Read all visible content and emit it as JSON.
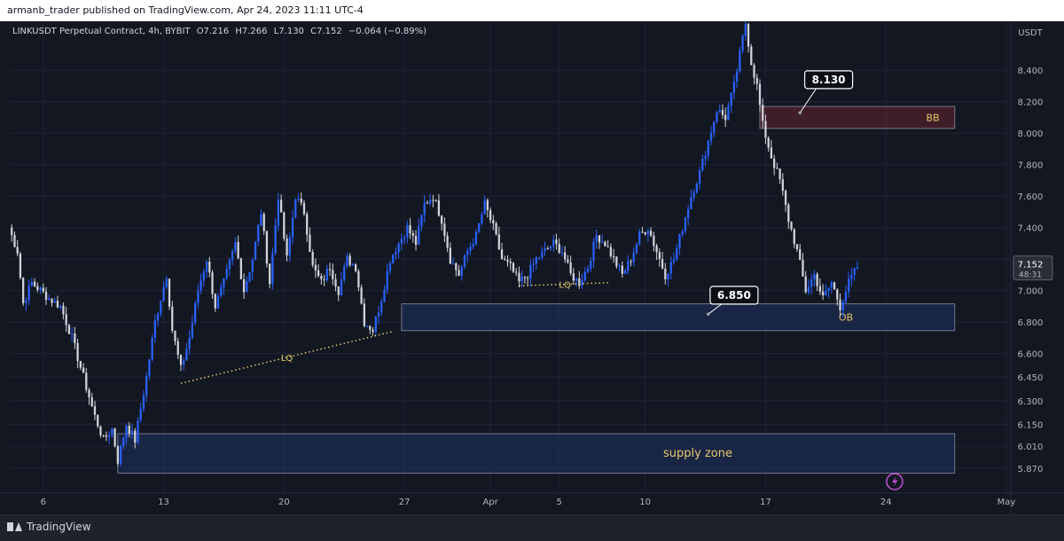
{
  "header": {
    "publisher": "armanb_trader published on TradingView.com, Apr 24, 2023 11:11 UTC-4"
  },
  "legend": {
    "symbol": "LINKUSDT Perpetual Contract, 4h, BYBIT",
    "open": "O7.216",
    "high": "H7.266",
    "low": "L7.130",
    "close": "C7.152",
    "change": "−0.064 (−0.89%)"
  },
  "footer": {
    "brand": "TradingView"
  },
  "chart_data": {
    "type": "candlestick",
    "timeframe": "4h",
    "currency": "USDT",
    "ylim": [
      5.78,
      8.7
    ],
    "y_ticks": [
      {
        "v": 8.4,
        "label": "8.400"
      },
      {
        "v": 8.2,
        "label": "8.200"
      },
      {
        "v": 8.0,
        "label": "8.000"
      },
      {
        "v": 7.8,
        "label": "7.800"
      },
      {
        "v": 7.6,
        "label": "7.600"
      },
      {
        "v": 7.4,
        "label": "7.400"
      },
      {
        "v": 7.2,
        "label": "7.200"
      },
      {
        "v": 7.0,
        "label": "7.000"
      },
      {
        "v": 6.8,
        "label": "6.800"
      },
      {
        "v": 6.6,
        "label": "6.600"
      },
      {
        "v": 6.45,
        "label": "6.450"
      },
      {
        "v": 6.3,
        "label": "6.300"
      },
      {
        "v": 6.15,
        "label": "6.150"
      },
      {
        "v": 6.01,
        "label": "6.010"
      },
      {
        "v": 5.87,
        "label": "5.870"
      }
    ],
    "x_ticks": [
      {
        "i": 12,
        "label": "6"
      },
      {
        "i": 54,
        "label": "13"
      },
      {
        "i": 96,
        "label": "20"
      },
      {
        "i": 138,
        "label": "27"
      },
      {
        "i": 168,
        "label": "Apr"
      },
      {
        "i": 192,
        "label": "5"
      },
      {
        "i": 222,
        "label": "10"
      },
      {
        "i": 264,
        "label": "17"
      },
      {
        "i": 306,
        "label": "24"
      },
      {
        "i": 348,
        "label": "May"
      }
    ],
    "last_price": {
      "value": 7.152,
      "label": "7.152",
      "countdown": "48:31"
    },
    "anchors": [
      [
        0,
        7.4
      ],
      [
        3,
        7.25
      ],
      [
        5,
        6.92
      ],
      [
        8,
        7.05
      ],
      [
        14,
        6.95
      ],
      [
        18,
        6.9
      ],
      [
        22,
        6.7
      ],
      [
        26,
        6.45
      ],
      [
        30,
        6.2
      ],
      [
        33,
        6.05
      ],
      [
        36,
        6.12
      ],
      [
        38,
        5.92
      ],
      [
        41,
        6.15
      ],
      [
        44,
        6.05
      ],
      [
        48,
        6.45
      ],
      [
        51,
        6.8
      ],
      [
        55,
        7.1
      ],
      [
        57,
        6.75
      ],
      [
        60,
        6.5
      ],
      [
        63,
        6.7
      ],
      [
        66,
        7.0
      ],
      [
        69,
        7.2
      ],
      [
        72,
        6.9
      ],
      [
        75,
        7.05
      ],
      [
        79,
        7.3
      ],
      [
        82,
        7.0
      ],
      [
        85,
        7.2
      ],
      [
        88,
        7.5
      ],
      [
        91,
        7.05
      ],
      [
        94,
        7.6
      ],
      [
        97,
        7.2
      ],
      [
        100,
        7.6
      ],
      [
        103,
        7.5
      ],
      [
        106,
        7.15
      ],
      [
        109,
        7.05
      ],
      [
        112,
        7.15
      ],
      [
        115,
        7.0
      ],
      [
        118,
        7.2
      ],
      [
        121,
        7.15
      ],
      [
        124,
        6.8
      ],
      [
        127,
        6.75
      ],
      [
        130,
        6.95
      ],
      [
        133,
        7.2
      ],
      [
        136,
        7.3
      ],
      [
        139,
        7.4
      ],
      [
        142,
        7.3
      ],
      [
        145,
        7.55
      ],
      [
        148,
        7.6
      ],
      [
        151,
        7.45
      ],
      [
        154,
        7.2
      ],
      [
        157,
        7.1
      ],
      [
        160,
        7.25
      ],
      [
        163,
        7.35
      ],
      [
        166,
        7.55
      ],
      [
        169,
        7.4
      ],
      [
        172,
        7.2
      ],
      [
        175,
        7.15
      ],
      [
        178,
        7.05
      ],
      [
        181,
        7.1
      ],
      [
        184,
        7.2
      ],
      [
        187,
        7.25
      ],
      [
        190,
        7.3
      ],
      [
        193,
        7.25
      ],
      [
        196,
        7.1
      ],
      [
        199,
        7.05
      ],
      [
        202,
        7.15
      ],
      [
        205,
        7.35
      ],
      [
        208,
        7.3
      ],
      [
        211,
        7.2
      ],
      [
        214,
        7.1
      ],
      [
        217,
        7.2
      ],
      [
        220,
        7.35
      ],
      [
        223,
        7.4
      ],
      [
        226,
        7.25
      ],
      [
        229,
        7.1
      ],
      [
        232,
        7.2
      ],
      [
        235,
        7.4
      ],
      [
        238,
        7.6
      ],
      [
        241,
        7.75
      ],
      [
        244,
        7.95
      ],
      [
        247,
        8.15
      ],
      [
        250,
        8.1
      ],
      [
        253,
        8.3
      ],
      [
        255,
        8.5
      ],
      [
        257,
        8.7
      ],
      [
        259,
        8.45
      ],
      [
        261,
        8.3
      ],
      [
        263,
        8.05
      ],
      [
        266,
        7.85
      ],
      [
        269,
        7.7
      ],
      [
        272,
        7.45
      ],
      [
        275,
        7.25
      ],
      [
        278,
        7.0
      ],
      [
        281,
        7.1
      ],
      [
        284,
        6.95
      ],
      [
        287,
        7.05
      ],
      [
        290,
        6.9
      ],
      [
        293,
        7.05
      ],
      [
        296,
        7.15
      ]
    ],
    "zones": [
      {
        "name": "bb-zone",
        "label": "BB",
        "i0": 262,
        "i1": 330,
        "top": 8.17,
        "bottom": 8.03
      },
      {
        "name": "ob-zone",
        "label": "OB",
        "i0": 137,
        "i1": 330,
        "top": 6.915,
        "bottom": 6.745
      },
      {
        "name": "supply-zone",
        "label": "supply zone",
        "i0": 38,
        "i1": 330,
        "top": 6.09,
        "bottom": 5.84
      }
    ],
    "lines": [
      {
        "name": "lq-line-1",
        "label": "LQ",
        "i0": 60,
        "v0": 6.41,
        "i1": 134,
        "v1": 6.74
      },
      {
        "name": "lq-line-2",
        "label": "LQ",
        "i0": 178,
        "v0": 7.03,
        "i1": 210,
        "v1": 7.05
      }
    ],
    "callouts": [
      {
        "name": "callout-8130",
        "label": "8.130",
        "i": 286,
        "v": 8.34,
        "pi": 276,
        "pv": 8.13
      },
      {
        "name": "callout-6850",
        "label": "6.850",
        "i": 253,
        "v": 6.97,
        "pi": 244,
        "pv": 6.85
      }
    ],
    "colors": {
      "up": "#2962ff",
      "down": "#d1d4dc",
      "background": "#131722",
      "grid": "#1f2433"
    }
  }
}
